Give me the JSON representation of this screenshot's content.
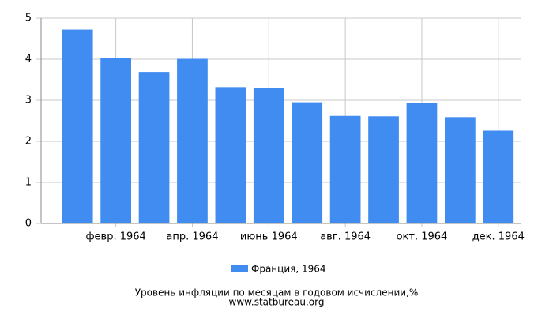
{
  "chart_data": {
    "type": "bar",
    "title": "Уровень инфляции по месяцам в годовом исчислении,%",
    "subtitle": "www.statbureau.org",
    "categories": [
      null,
      "февр. 1964",
      null,
      "апр. 1964",
      null,
      "июнь 1964",
      null,
      "авг. 1964",
      null,
      "окт. 1964",
      null,
      "дек. 1964"
    ],
    "series": [
      {
        "name": "Франция, 1964",
        "color": "#418cf0",
        "values": [
          4.72,
          4.03,
          3.69,
          4.01,
          3.32,
          3.3,
          2.95,
          2.62,
          2.61,
          2.93,
          2.59,
          2.26
        ]
      }
    ],
    "ylim": [
      0,
      5
    ],
    "yticks": [
      0,
      1,
      2,
      3,
      4,
      5
    ],
    "grid": true,
    "legend": "bottom"
  }
}
